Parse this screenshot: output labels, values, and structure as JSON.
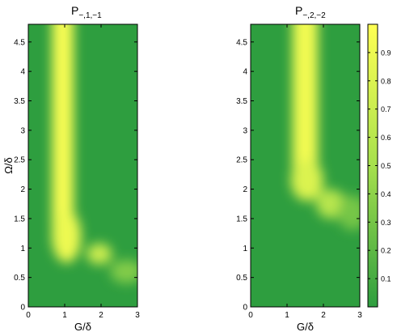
{
  "colormap": {
    "low": "#2e9e3f",
    "mid": "#a6e04d",
    "high": "#ffff52",
    "range": [
      0.0,
      1.0
    ],
    "ticks": [
      "0.1",
      "0.2",
      "0.3",
      "0.4",
      "0.5",
      "0.6",
      "0.7",
      "0.8",
      "0.9"
    ],
    "tick_values": [
      0.1,
      0.2,
      0.3,
      0.4,
      0.5,
      0.6,
      0.7,
      0.8,
      0.9
    ]
  },
  "chart_data": [
    {
      "type": "heatmap",
      "title_main": "P",
      "title_sub": "−,1,−1",
      "xlabel": "G/δ",
      "ylabel": "Ω/δ",
      "xlim": [
        0,
        3
      ],
      "ylim": [
        0,
        4.8
      ],
      "xticks": [
        0,
        1,
        2,
        3
      ],
      "xtick_labels": [
        "0",
        "1",
        "2",
        "3"
      ],
      "yticks": [
        0,
        0.5,
        1,
        1.5,
        2,
        2.5,
        3,
        3.5,
        4,
        4.5
      ],
      "ytick_labels": [
        "0",
        "0.5",
        "1",
        "1.5",
        "2",
        "2.5",
        "3",
        "3.5",
        "4",
        "4.5"
      ],
      "features": [
        {
          "kind": "vertical_band",
          "x_center": 0.95,
          "x_halfwidth": 0.3,
          "y_from": 1.0,
          "y_to": 4.8,
          "peak": 0.95
        },
        {
          "kind": "blob",
          "x_center": 1.05,
          "y_center": 1.2,
          "x_halfwidth": 0.4,
          "y_halfwidth": 0.45,
          "peak": 0.9
        },
        {
          "kind": "blob",
          "x_center": 1.95,
          "y_center": 0.9,
          "x_halfwidth": 0.35,
          "y_halfwidth": 0.18,
          "peak": 0.7
        },
        {
          "kind": "blob",
          "x_center": 2.7,
          "y_center": 0.6,
          "x_halfwidth": 0.45,
          "y_halfwidth": 0.2,
          "peak": 0.35
        }
      ]
    },
    {
      "type": "heatmap",
      "title_main": "P",
      "title_sub": "−,2,−2",
      "xlabel": "G/δ",
      "ylabel": "",
      "xlim": [
        0,
        3
      ],
      "ylim": [
        0,
        4.8
      ],
      "xticks": [
        0,
        1,
        2,
        3
      ],
      "xtick_labels": [
        "0",
        "1",
        "2",
        "3"
      ],
      "yticks": [
        0,
        0.5,
        1,
        1.5,
        2,
        2.5,
        3,
        3.5,
        4,
        4.5
      ],
      "ytick_labels": [
        "0",
        "0.5",
        "1",
        "1.5",
        "2",
        "2.5",
        "3",
        "3.5",
        "4",
        "4.5"
      ],
      "features": [
        {
          "kind": "vertical_band",
          "x_center": 1.5,
          "x_halfwidth": 0.35,
          "y_from": 1.9,
          "y_to": 4.8,
          "peak": 0.92
        },
        {
          "kind": "blob",
          "x_center": 1.55,
          "y_center": 2.15,
          "x_halfwidth": 0.45,
          "y_halfwidth": 0.35,
          "peak": 0.8
        },
        {
          "kind": "blob",
          "x_center": 2.2,
          "y_center": 1.75,
          "x_halfwidth": 0.4,
          "y_halfwidth": 0.25,
          "peak": 0.6
        },
        {
          "kind": "blob",
          "x_center": 2.8,
          "y_center": 1.6,
          "x_halfwidth": 0.4,
          "y_halfwidth": 0.3,
          "peak": 0.3
        }
      ]
    }
  ]
}
